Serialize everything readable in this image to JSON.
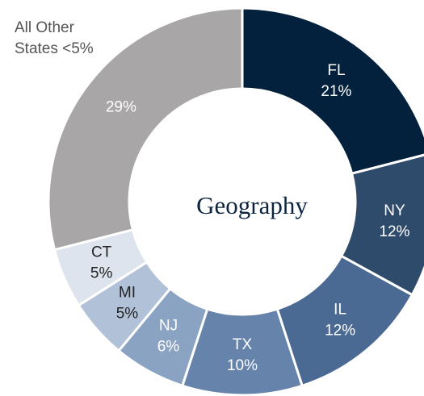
{
  "chart_data": {
    "type": "donut",
    "center_label": "Geography",
    "categories": [
      "FL",
      "NY",
      "IL",
      "TX",
      "NJ",
      "MI",
      "CT",
      "All Other States <5%"
    ],
    "values": [
      21,
      12,
      12,
      10,
      6,
      5,
      5,
      29
    ],
    "value_labels": [
      "21%",
      "12%",
      "12%",
      "10%",
      "6%",
      "5%",
      "5%",
      "29%"
    ],
    "colors": [
      "#03203c",
      "#2f4b6b",
      "#4a6a93",
      "#6683ab",
      "#8aa3c3",
      "#b1c1d7",
      "#dde4ee",
      "#a8a6a6"
    ],
    "label_colors": [
      "#ffffff",
      "#ffffff",
      "#ffffff",
      "#ffffff",
      "#ffffff",
      "#222222",
      "#222222",
      "#ffffff"
    ]
  }
}
